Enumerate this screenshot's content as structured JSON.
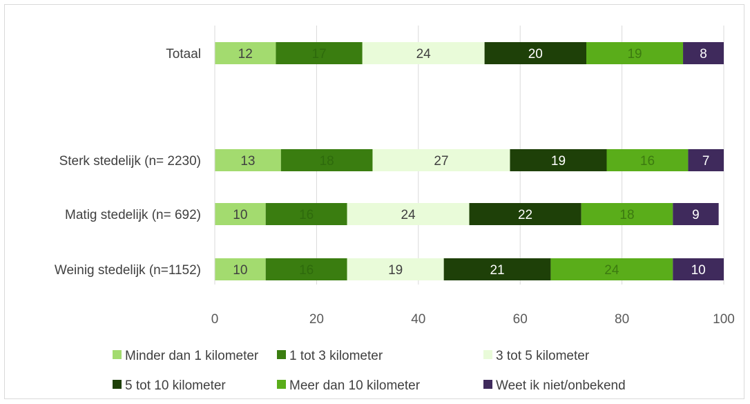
{
  "chart_data": {
    "type": "bar",
    "orientation": "horizontal",
    "stacked": true,
    "categories": [
      "Totaal",
      "Sterk stedelijk (n= 2230)",
      "Matig stedelijk (n= 692)",
      "Weinig stedelijk (n=1152)"
    ],
    "series": [
      {
        "name": "Minder dan 1 kilometer",
        "color": "#a3db6f",
        "label_color": "#404040",
        "values": [
          12,
          13,
          10,
          10
        ]
      },
      {
        "name": "1 tot 3 kilometer",
        "color": "#3a7d10",
        "label_color": "#2e6a0c",
        "values": [
          17,
          18,
          16,
          16
        ]
      },
      {
        "name": "3 tot 5 kilometer",
        "color": "#e9fbd9",
        "label_color": "#404040",
        "values": [
          24,
          27,
          24,
          19
        ]
      },
      {
        "name": "5 tot 10 kilometer",
        "color": "#1e4008",
        "label_color": "#ffffff",
        "values": [
          20,
          19,
          22,
          21
        ]
      },
      {
        "name": "Meer dan 10 kilometer",
        "color": "#5aad1a",
        "label_color": "#3c7a10",
        "values": [
          19,
          16,
          18,
          24
        ]
      },
      {
        "name": "Weet ik niet/onbekend",
        "color": "#3f2a5c",
        "label_color": "#ffffff",
        "values": [
          8,
          7,
          9,
          10
        ]
      }
    ],
    "xlim": [
      0,
      100
    ],
    "x_ticks": [
      "0",
      "20",
      "40",
      "60",
      "80",
      "100"
    ],
    "gridlines": "vertical",
    "legend_position": "bottom",
    "title": "",
    "xlabel": "",
    "ylabel": ""
  }
}
